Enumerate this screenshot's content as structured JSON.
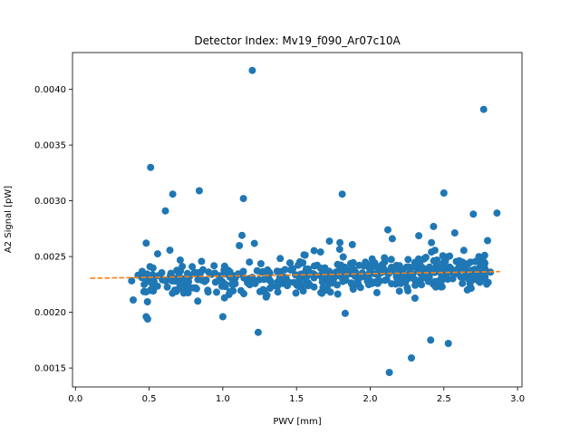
{
  "chart_data": {
    "type": "scatter",
    "title": "Detector Index: Mv19_f090_Ar07c10A",
    "xlabel": "PWV [mm]",
    "ylabel": "A2 Signal [pW]",
    "xlim": [
      -0.02,
      3.03
    ],
    "ylim": [
      0.00133,
      0.00433
    ],
    "x_ticks": [
      0.0,
      0.5,
      1.0,
      1.5,
      2.0,
      2.5,
      3.0
    ],
    "x_tick_labels": [
      "0.0",
      "0.5",
      "1.0",
      "1.5",
      "2.0",
      "2.5",
      "3.0"
    ],
    "y_ticks": [
      0.0015,
      0.002,
      0.0025,
      0.003,
      0.0035,
      0.004
    ],
    "y_tick_labels": [
      "0.0015",
      "0.0020",
      "0.0025",
      "0.0030",
      "0.0035",
      "0.0040"
    ],
    "scatter_color": "#1f77b4",
    "fit_color": "#ff7f0e",
    "fit_line": {
      "x": [
        0.1,
        2.88
      ],
      "y": [
        0.002305,
        0.002365
      ],
      "style": "dashed"
    },
    "outliers": [
      {
        "x": 1.2,
        "y": 0.00417
      },
      {
        "x": 2.77,
        "y": 0.00382
      },
      {
        "x": 0.51,
        "y": 0.0033
      },
      {
        "x": 0.84,
        "y": 0.00309
      },
      {
        "x": 0.66,
        "y": 0.00306
      },
      {
        "x": 1.14,
        "y": 0.00302
      },
      {
        "x": 1.81,
        "y": 0.00306
      },
      {
        "x": 2.5,
        "y": 0.00307
      },
      {
        "x": 0.61,
        "y": 0.00291
      },
      {
        "x": 2.7,
        "y": 0.00288
      },
      {
        "x": 2.86,
        "y": 0.00289
      },
      {
        "x": 2.12,
        "y": 0.00274
      },
      {
        "x": 2.43,
        "y": 0.00277
      },
      {
        "x": 0.48,
        "y": 0.00196
      },
      {
        "x": 0.49,
        "y": 0.00194
      },
      {
        "x": 1.0,
        "y": 0.00196
      },
      {
        "x": 1.24,
        "y": 0.00182
      },
      {
        "x": 1.83,
        "y": 0.00199
      },
      {
        "x": 2.41,
        "y": 0.00175
      },
      {
        "x": 2.53,
        "y": 0.00172
      },
      {
        "x": 2.28,
        "y": 0.00159
      },
      {
        "x": 2.13,
        "y": 0.00146
      },
      {
        "x": 0.48,
        "y": 0.00262
      },
      {
        "x": 0.83,
        "y": 0.0021
      },
      {
        "x": 1.13,
        "y": 0.00269
      },
      {
        "x": 2.15,
        "y": 0.00266
      }
    ],
    "cluster": {
      "point_count": 520,
      "x_range": [
        0.35,
        2.82
      ],
      "y_center_range": [
        0.00225,
        0.00236
      ],
      "y_spread": 0.00012
    }
  }
}
